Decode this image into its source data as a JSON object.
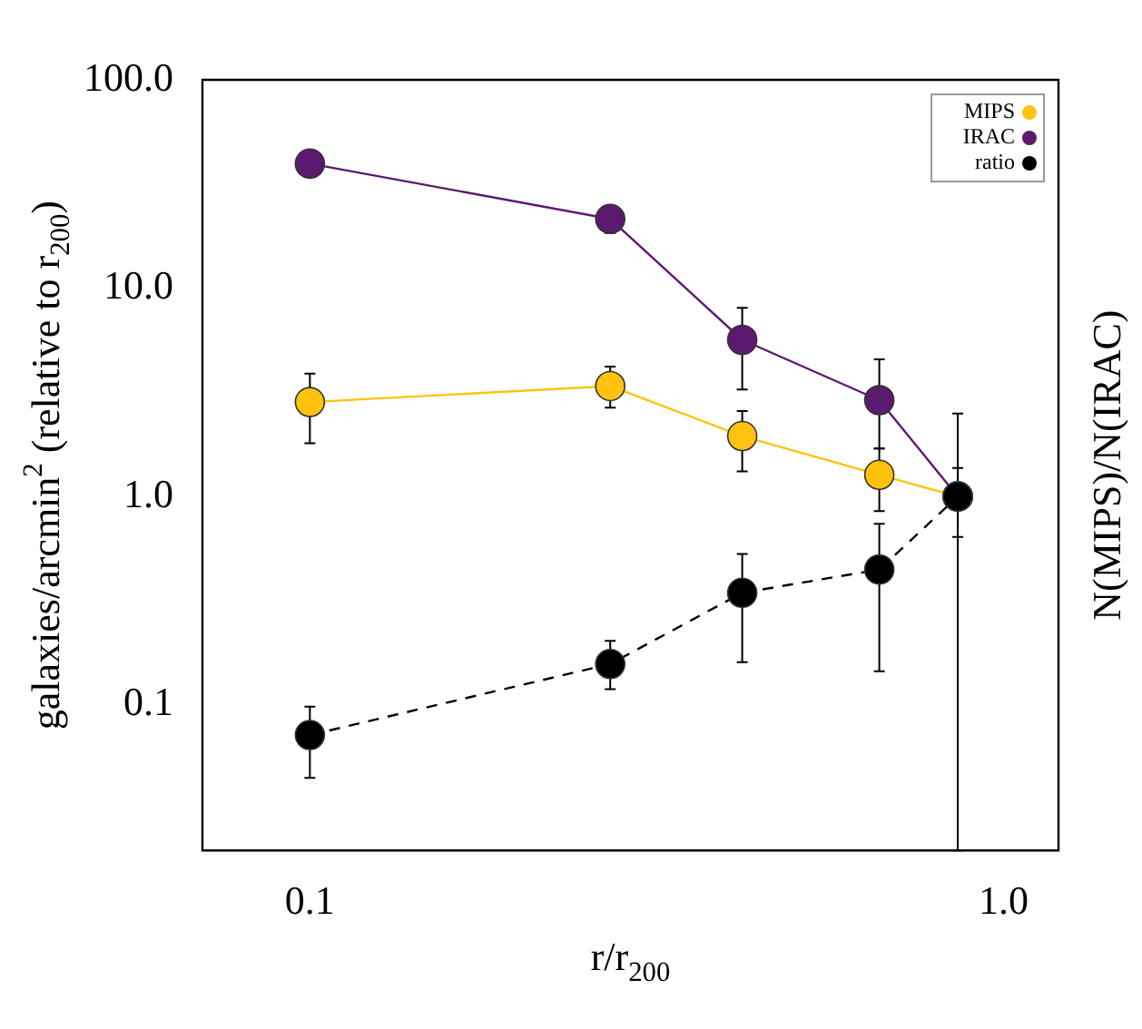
{
  "chart_data": {
    "type": "line",
    "xlabel": "r/r$_{200}$",
    "ylabel": "galaxies/arcmin$^{2}$ (relative to r$_{200}$)",
    "y2label": "N(MIPS)/N(IRAC)",
    "x": [
      0.1,
      0.271,
      0.42,
      0.662,
      0.859
    ],
    "series": [
      {
        "name": "MIPS",
        "color": "#ffc20e",
        "values": [
          2.84,
          3.39,
          1.95,
          1.27,
          1.0
        ],
        "errors": [
          [
            1.8,
            3.89
          ],
          [
            2.67,
            4.2
          ],
          [
            1.32,
            2.57
          ],
          [
            0.85,
            1.7
          ],
          [
            0.64,
            1.37
          ]
        ]
      },
      {
        "name": "IRAC",
        "color": "#5b1a6e",
        "values": [
          39.6,
          21.5,
          5.65,
          2.9,
          1.0
        ],
        "errors": [
          null,
          [
            18.4,
            24.2
          ],
          [
            3.26,
            8.05
          ],
          [
            1.7,
            4.55
          ],
          null
        ]
      },
      {
        "name": "ratio",
        "color": "#000000",
        "line_style": "dashed",
        "values": [
          0.0716,
          0.157,
          0.345,
          0.446,
          1.0
        ],
        "errors": [
          [
            0.0446,
            0.098
          ],
          [
            0.119,
            0.203
          ],
          [
            0.16,
            0.53
          ],
          [
            0.145,
            0.74
          ],
          [
            0.02,
            2.5
          ]
        ]
      }
    ],
    "log": "xy",
    "xlim": [
      0.07,
      1.2
    ],
    "ylim": [
      0.02,
      100
    ],
    "xticks": [
      {
        "value": 0.1,
        "label": "0.1"
      },
      {
        "value": 1,
        "label": "1.0"
      }
    ],
    "yticks": [
      {
        "value": 0.1,
        "label": "0.1"
      },
      {
        "value": 1,
        "label": "1.0"
      },
      {
        "value": 10,
        "label": "10.0"
      },
      {
        "value": 100,
        "label": "100.0"
      }
    ],
    "legend": "top right",
    "marker": "circle",
    "grid": false
  }
}
